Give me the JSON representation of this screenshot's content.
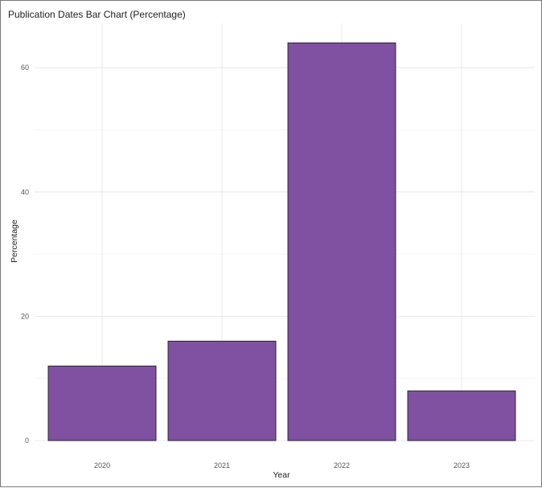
{
  "chart_data": {
    "type": "bar",
    "title": "Publication Dates Bar Chart (Percentage)",
    "xlabel": "Year",
    "ylabel": "Percentage",
    "categories": [
      "2020",
      "2021",
      "2022",
      "2023"
    ],
    "values": [
      12,
      16,
      64,
      8
    ],
    "ylim": [
      0,
      66
    ],
    "yticks": [
      0,
      20,
      40,
      60
    ],
    "grid": true,
    "legend": "none",
    "bar_color": "#7f51a0"
  }
}
